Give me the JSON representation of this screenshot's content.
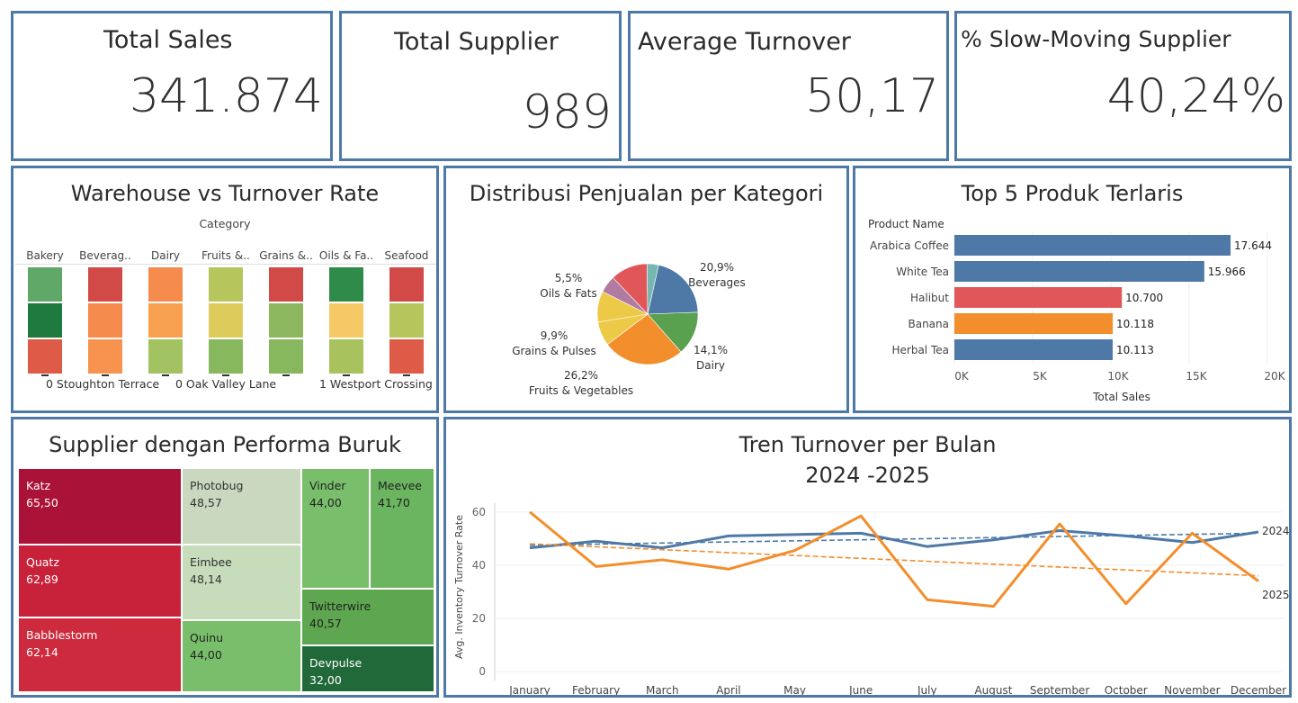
{
  "kpis": {
    "total_sales": {
      "title": "Total Sales",
      "value": "341.874"
    },
    "total_supplier": {
      "title": "Total Supplier",
      "value": "989"
    },
    "avg_turnover": {
      "title": "Average Turnover",
      "value": "50,17"
    },
    "slow_moving": {
      "title": "% Slow-Moving Supplier",
      "value": "40,24%"
    }
  },
  "warehouse": {
    "title": "Warehouse vs Turnover Rate",
    "header": "Category",
    "categories": [
      "Bakery",
      "Beverag..",
      "Dairy",
      "Fruits &..",
      "Grains &..",
      "Oils & Fa..",
      "Seafood"
    ],
    "row_labels": [
      "0 Stoughton Terrace",
      "0 Oak Valley Lane",
      "1 Westport Crossing"
    ],
    "cell_colors": [
      [
        "#60a868",
        "#d24a48",
        "#f58b4c",
        "#b7c65c",
        "#d24a48",
        "#2e8b4a",
        "#d24a48"
      ],
      [
        "#1e7a3e",
        "#f58b4c",
        "#f7a050",
        "#ddcc5c",
        "#8db860",
        "#f7c966",
        "#b7c65c"
      ],
      [
        "#de5b48",
        "#f7934e",
        "#a3c262",
        "#88b85e",
        "#88b85e",
        "#a8c25e",
        "#de5b48"
      ]
    ]
  },
  "pie": {
    "title": "Distribusi Penjualan per Kategori",
    "chart_data": {
      "type": "pie",
      "slices": [
        {
          "label": "Beverages",
          "pct": "20,9%",
          "value": 20.9,
          "color": "#4e79a7"
        },
        {
          "label": "Dairy",
          "pct": "14,1%",
          "value": 14.1,
          "color": "#59a14f"
        },
        {
          "label": "Fruits & Vegetables",
          "pct": "26,2%",
          "value": 26.2,
          "color": "#f28e2b"
        },
        {
          "label": "",
          "pct": "",
          "value": 7.8,
          "color": "#edc948"
        },
        {
          "label": "Grains & Pulses",
          "pct": "9,9%",
          "value": 9.9,
          "color": "#edc948"
        },
        {
          "label": "Oils & Fats",
          "pct": "5,5%",
          "value": 5.5,
          "color": "#b07aa1"
        },
        {
          "label": "",
          "pct": "",
          "value": 11.9,
          "color": "#e15759"
        },
        {
          "label": "",
          "pct": "",
          "value": 3.7,
          "color": "#76b7b2"
        }
      ]
    }
  },
  "bars": {
    "title": "Top 5 Produk Terlaris",
    "chart_data": {
      "type": "bar",
      "ylabel": "Product Name",
      "xlabel": "Total Sales",
      "categories": [
        "Arabica Coffee",
        "White Tea",
        "Halibut",
        "Banana",
        "Herbal Tea"
      ],
      "values": [
        17644,
        15966,
        10700,
        10118,
        10113
      ],
      "value_labels": [
        "17.644",
        "15.966",
        "10.700",
        "10.118",
        "10.113"
      ],
      "colors": [
        "#4e79a7",
        "#4e79a7",
        "#e15759",
        "#f28e2b",
        "#4e79a7"
      ],
      "xlim": [
        0,
        20000
      ],
      "ticks": [
        0,
        5000,
        10000,
        15000,
        20000
      ],
      "tick_labels": [
        "0K",
        "5K",
        "10K",
        "15K",
        "20K"
      ]
    }
  },
  "treemap": {
    "title": "Supplier dengan Performa Buruk",
    "items": [
      {
        "name": "Katz",
        "value": "65,50",
        "color": "#ab1237",
        "text": "#fff"
      },
      {
        "name": "Quatz",
        "value": "62,89",
        "color": "#c8223a",
        "text": "#fff"
      },
      {
        "name": "Babblestorm",
        "value": "62,14",
        "color": "#cd2a3d",
        "text": "#fff"
      },
      {
        "name": "Photobug",
        "value": "48,57",
        "color": "#cad8c0",
        "text": "#333"
      },
      {
        "name": "Eimbee",
        "value": "48,14",
        "color": "#c6dcbb",
        "text": "#333"
      },
      {
        "name": "Quinu",
        "value": "44,00",
        "color": "#79bf6b",
        "text": "#222"
      },
      {
        "name": "Vinder",
        "value": "44,00",
        "color": "#79bf6b",
        "text": "#222"
      },
      {
        "name": "Meevee",
        "value": "41,70",
        "color": "#6cb560",
        "text": "#222"
      },
      {
        "name": "Twitterwire",
        "value": "40,57",
        "color": "#5ea650",
        "text": "#222"
      },
      {
        "name": "Devpulse",
        "value": "32,00",
        "color": "#22693a",
        "text": "#fff"
      }
    ]
  },
  "line": {
    "title": "Tren Turnover per Bulan",
    "subtitle": "2024 -2025",
    "chart_data": {
      "type": "line",
      "ylabel": "Avg. Inventory Turnover Rate",
      "x": [
        "January",
        "February",
        "March",
        "April",
        "May",
        "June",
        "July",
        "August",
        "September",
        "October",
        "November",
        "December"
      ],
      "ylim": [
        0,
        65
      ],
      "yticks": [
        0,
        20,
        40,
        60
      ],
      "series": [
        {
          "name": "2024",
          "color": "#4e79a7",
          "values": [
            46.5,
            49,
            46.5,
            51,
            51.5,
            52,
            47,
            49.5,
            53,
            51,
            48.5,
            52.5
          ],
          "trend": [
            47.5,
            52
          ]
        },
        {
          "name": "2025",
          "color": "#f28e2b",
          "values": [
            60,
            39.5,
            42,
            38.5,
            45.5,
            58.5,
            27,
            24.5,
            55.5,
            25.5,
            52,
            34
          ],
          "trend": [
            48,
            36
          ]
        }
      ]
    }
  }
}
